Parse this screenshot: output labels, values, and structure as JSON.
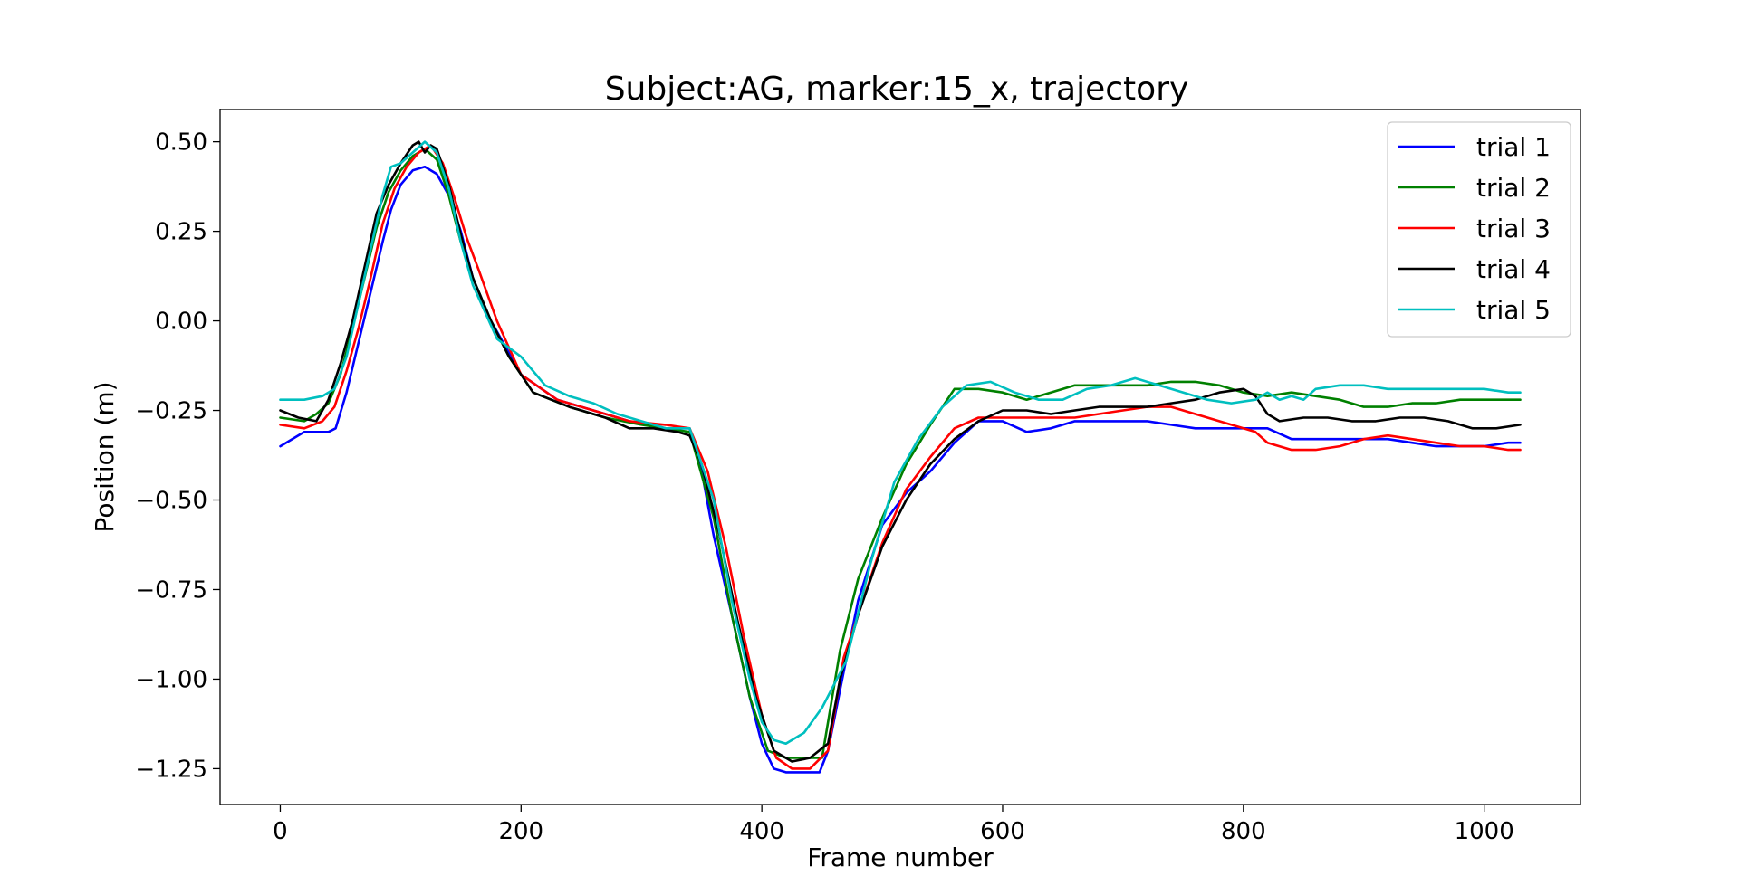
{
  "chart_data": {
    "type": "line",
    "title": "Subject:AG, marker:15_x, trajectory",
    "xlabel": "Frame number",
    "ylabel": "Position (m)",
    "xlim": [
      -50,
      1080
    ],
    "ylim": [
      -1.35,
      0.59
    ],
    "xticks": [
      0,
      200,
      400,
      600,
      800,
      1000
    ],
    "xtick_labels": [
      "0",
      "200",
      "400",
      "600",
      "800",
      "1000"
    ],
    "yticks": [
      0.5,
      0.25,
      0.0,
      -0.25,
      -0.5,
      -0.75,
      -1.0,
      -1.25
    ],
    "ytick_labels": [
      "0.50",
      "0.25",
      "0.00",
      "−0.25",
      "−0.50",
      "−0.75",
      "−1.00",
      "−1.25"
    ],
    "grid": false,
    "legend_position": "top-right",
    "series": [
      {
        "name": "trial 1",
        "color": "#0000ff",
        "x": [
          0,
          20,
          40,
          46,
          55,
          65,
          75,
          85,
          92,
          100,
          110,
          120,
          130,
          140,
          150,
          160,
          175,
          200,
          230,
          260,
          290,
          320,
          340,
          350,
          360,
          375,
          390,
          400,
          410,
          420,
          435,
          448,
          455,
          465,
          480,
          500,
          520,
          540,
          560,
          580,
          600,
          620,
          640,
          650,
          660,
          680,
          700,
          720,
          740,
          760,
          780,
          800,
          820,
          840,
          860,
          880,
          900,
          920,
          940,
          960,
          980,
          1000,
          1020,
          1030
        ],
        "values": [
          -0.35,
          -0.31,
          -0.31,
          -0.3,
          -0.2,
          -0.06,
          0.08,
          0.22,
          0.31,
          0.38,
          0.42,
          0.43,
          0.41,
          0.35,
          0.25,
          0.12,
          0.0,
          -0.15,
          -0.22,
          -0.25,
          -0.28,
          -0.3,
          -0.3,
          -0.42,
          -0.6,
          -0.82,
          -1.05,
          -1.18,
          -1.25,
          -1.26,
          -1.26,
          -1.26,
          -1.2,
          -1.03,
          -0.78,
          -0.57,
          -0.48,
          -0.42,
          -0.34,
          -0.28,
          -0.28,
          -0.31,
          -0.3,
          -0.29,
          -0.28,
          -0.28,
          -0.28,
          -0.28,
          -0.29,
          -0.3,
          -0.3,
          -0.3,
          -0.3,
          -0.33,
          -0.33,
          -0.33,
          -0.33,
          -0.33,
          -0.34,
          -0.35,
          -0.35,
          -0.35,
          -0.34,
          -0.34
        ]
      },
      {
        "name": "trial 2",
        "color": "#008000",
        "x": [
          0,
          20,
          30,
          40,
          50,
          60,
          70,
          80,
          90,
          100,
          110,
          120,
          130,
          140,
          150,
          160,
          175,
          190,
          210,
          240,
          270,
          300,
          320,
          340,
          360,
          375,
          390,
          405,
          420,
          435,
          450,
          465,
          480,
          500,
          520,
          540,
          560,
          580,
          600,
          620,
          640,
          660,
          680,
          700,
          720,
          740,
          760,
          780,
          800,
          820,
          840,
          860,
          880,
          900,
          920,
          940,
          960,
          980,
          1000,
          1020,
          1030
        ],
        "values": [
          -0.27,
          -0.28,
          -0.26,
          -0.23,
          -0.15,
          -0.02,
          0.12,
          0.26,
          0.36,
          0.42,
          0.46,
          0.48,
          0.45,
          0.35,
          0.22,
          0.12,
          0.0,
          -0.1,
          -0.2,
          -0.24,
          -0.27,
          -0.29,
          -0.3,
          -0.31,
          -0.55,
          -0.82,
          -1.05,
          -1.2,
          -1.22,
          -1.22,
          -1.22,
          -0.92,
          -0.72,
          -0.55,
          -0.4,
          -0.29,
          -0.19,
          -0.19,
          -0.2,
          -0.22,
          -0.2,
          -0.18,
          -0.18,
          -0.18,
          -0.18,
          -0.17,
          -0.17,
          -0.18,
          -0.2,
          -0.21,
          -0.2,
          -0.21,
          -0.22,
          -0.24,
          -0.24,
          -0.23,
          -0.23,
          -0.22,
          -0.22,
          -0.22,
          -0.22
        ]
      },
      {
        "name": "trial 3",
        "color": "#ff0000",
        "x": [
          0,
          20,
          35,
          45,
          55,
          65,
          75,
          85,
          95,
          105,
          115,
          125,
          135,
          145,
          155,
          165,
          180,
          200,
          230,
          260,
          290,
          320,
          340,
          355,
          370,
          385,
          400,
          412,
          425,
          440,
          455,
          468,
          480,
          500,
          520,
          540,
          560,
          580,
          600,
          620,
          640,
          660,
          680,
          700,
          720,
          740,
          760,
          780,
          800,
          810,
          820,
          840,
          860,
          880,
          900,
          920,
          940,
          960,
          980,
          1000,
          1020,
          1030
        ],
        "values": [
          -0.29,
          -0.3,
          -0.28,
          -0.24,
          -0.14,
          -0.02,
          0.12,
          0.27,
          0.37,
          0.43,
          0.47,
          0.49,
          0.44,
          0.34,
          0.23,
          0.14,
          0.0,
          -0.15,
          -0.22,
          -0.25,
          -0.28,
          -0.29,
          -0.3,
          -0.42,
          -0.63,
          -0.88,
          -1.1,
          -1.22,
          -1.25,
          -1.25,
          -1.2,
          -0.94,
          -0.82,
          -0.62,
          -0.47,
          -0.38,
          -0.3,
          -0.27,
          -0.27,
          -0.27,
          -0.27,
          -0.27,
          -0.26,
          -0.25,
          -0.24,
          -0.24,
          -0.26,
          -0.28,
          -0.3,
          -0.31,
          -0.34,
          -0.36,
          -0.36,
          -0.35,
          -0.33,
          -0.32,
          -0.33,
          -0.34,
          -0.35,
          -0.35,
          -0.36,
          -0.36
        ]
      },
      {
        "name": "trial 4",
        "color": "#000000",
        "x": [
          0,
          15,
          30,
          40,
          50,
          60,
          70,
          80,
          90,
          100,
          110,
          115,
          120,
          125,
          130,
          140,
          150,
          160,
          175,
          190,
          210,
          240,
          270,
          290,
          310,
          330,
          340,
          350,
          365,
          380,
          395,
          410,
          425,
          440,
          455,
          465,
          480,
          500,
          520,
          540,
          560,
          580,
          600,
          620,
          640,
          660,
          680,
          700,
          720,
          740,
          760,
          780,
          800,
          810,
          820,
          830,
          850,
          870,
          890,
          910,
          930,
          950,
          970,
          990,
          1010,
          1030
        ],
        "values": [
          -0.25,
          -0.27,
          -0.28,
          -0.22,
          -0.12,
          0.0,
          0.15,
          0.3,
          0.38,
          0.44,
          0.49,
          0.5,
          0.47,
          0.49,
          0.48,
          0.38,
          0.24,
          0.12,
          0.0,
          -0.1,
          -0.2,
          -0.24,
          -0.27,
          -0.3,
          -0.3,
          -0.31,
          -0.32,
          -0.4,
          -0.6,
          -0.84,
          -1.05,
          -1.2,
          -1.23,
          -1.22,
          -1.18,
          -1.0,
          -0.82,
          -0.63,
          -0.5,
          -0.4,
          -0.33,
          -0.28,
          -0.25,
          -0.25,
          -0.26,
          -0.25,
          -0.24,
          -0.24,
          -0.24,
          -0.23,
          -0.22,
          -0.2,
          -0.19,
          -0.21,
          -0.26,
          -0.28,
          -0.27,
          -0.27,
          -0.28,
          -0.28,
          -0.27,
          -0.27,
          -0.28,
          -0.3,
          -0.3,
          -0.29
        ]
      },
      {
        "name": "trial 5",
        "color": "#00bfbf",
        "x": [
          0,
          20,
          35,
          45,
          55,
          65,
          75,
          85,
          92,
          100,
          110,
          120,
          130,
          140,
          150,
          160,
          180,
          200,
          220,
          240,
          260,
          280,
          300,
          320,
          340,
          360,
          375,
          390,
          400,
          410,
          420,
          435,
          450,
          470,
          490,
          510,
          530,
          550,
          570,
          590,
          610,
          630,
          650,
          670,
          690,
          710,
          730,
          750,
          770,
          790,
          810,
          820,
          830,
          840,
          850,
          860,
          880,
          900,
          920,
          940,
          960,
          980,
          1000,
          1020,
          1030
        ],
        "values": [
          -0.22,
          -0.22,
          -0.21,
          -0.19,
          -0.1,
          0.05,
          0.2,
          0.35,
          0.43,
          0.44,
          0.47,
          0.5,
          0.47,
          0.37,
          0.22,
          0.1,
          -0.05,
          -0.1,
          -0.18,
          -0.21,
          -0.23,
          -0.26,
          -0.28,
          -0.3,
          -0.3,
          -0.5,
          -0.78,
          -1.0,
          -1.12,
          -1.17,
          -1.18,
          -1.15,
          -1.08,
          -0.95,
          -0.68,
          -0.45,
          -0.33,
          -0.24,
          -0.18,
          -0.17,
          -0.2,
          -0.22,
          -0.22,
          -0.19,
          -0.18,
          -0.16,
          -0.18,
          -0.2,
          -0.22,
          -0.23,
          -0.22,
          -0.2,
          -0.22,
          -0.21,
          -0.22,
          -0.19,
          -0.18,
          -0.18,
          -0.19,
          -0.19,
          -0.19,
          -0.19,
          -0.19,
          -0.2,
          -0.2
        ]
      }
    ]
  }
}
